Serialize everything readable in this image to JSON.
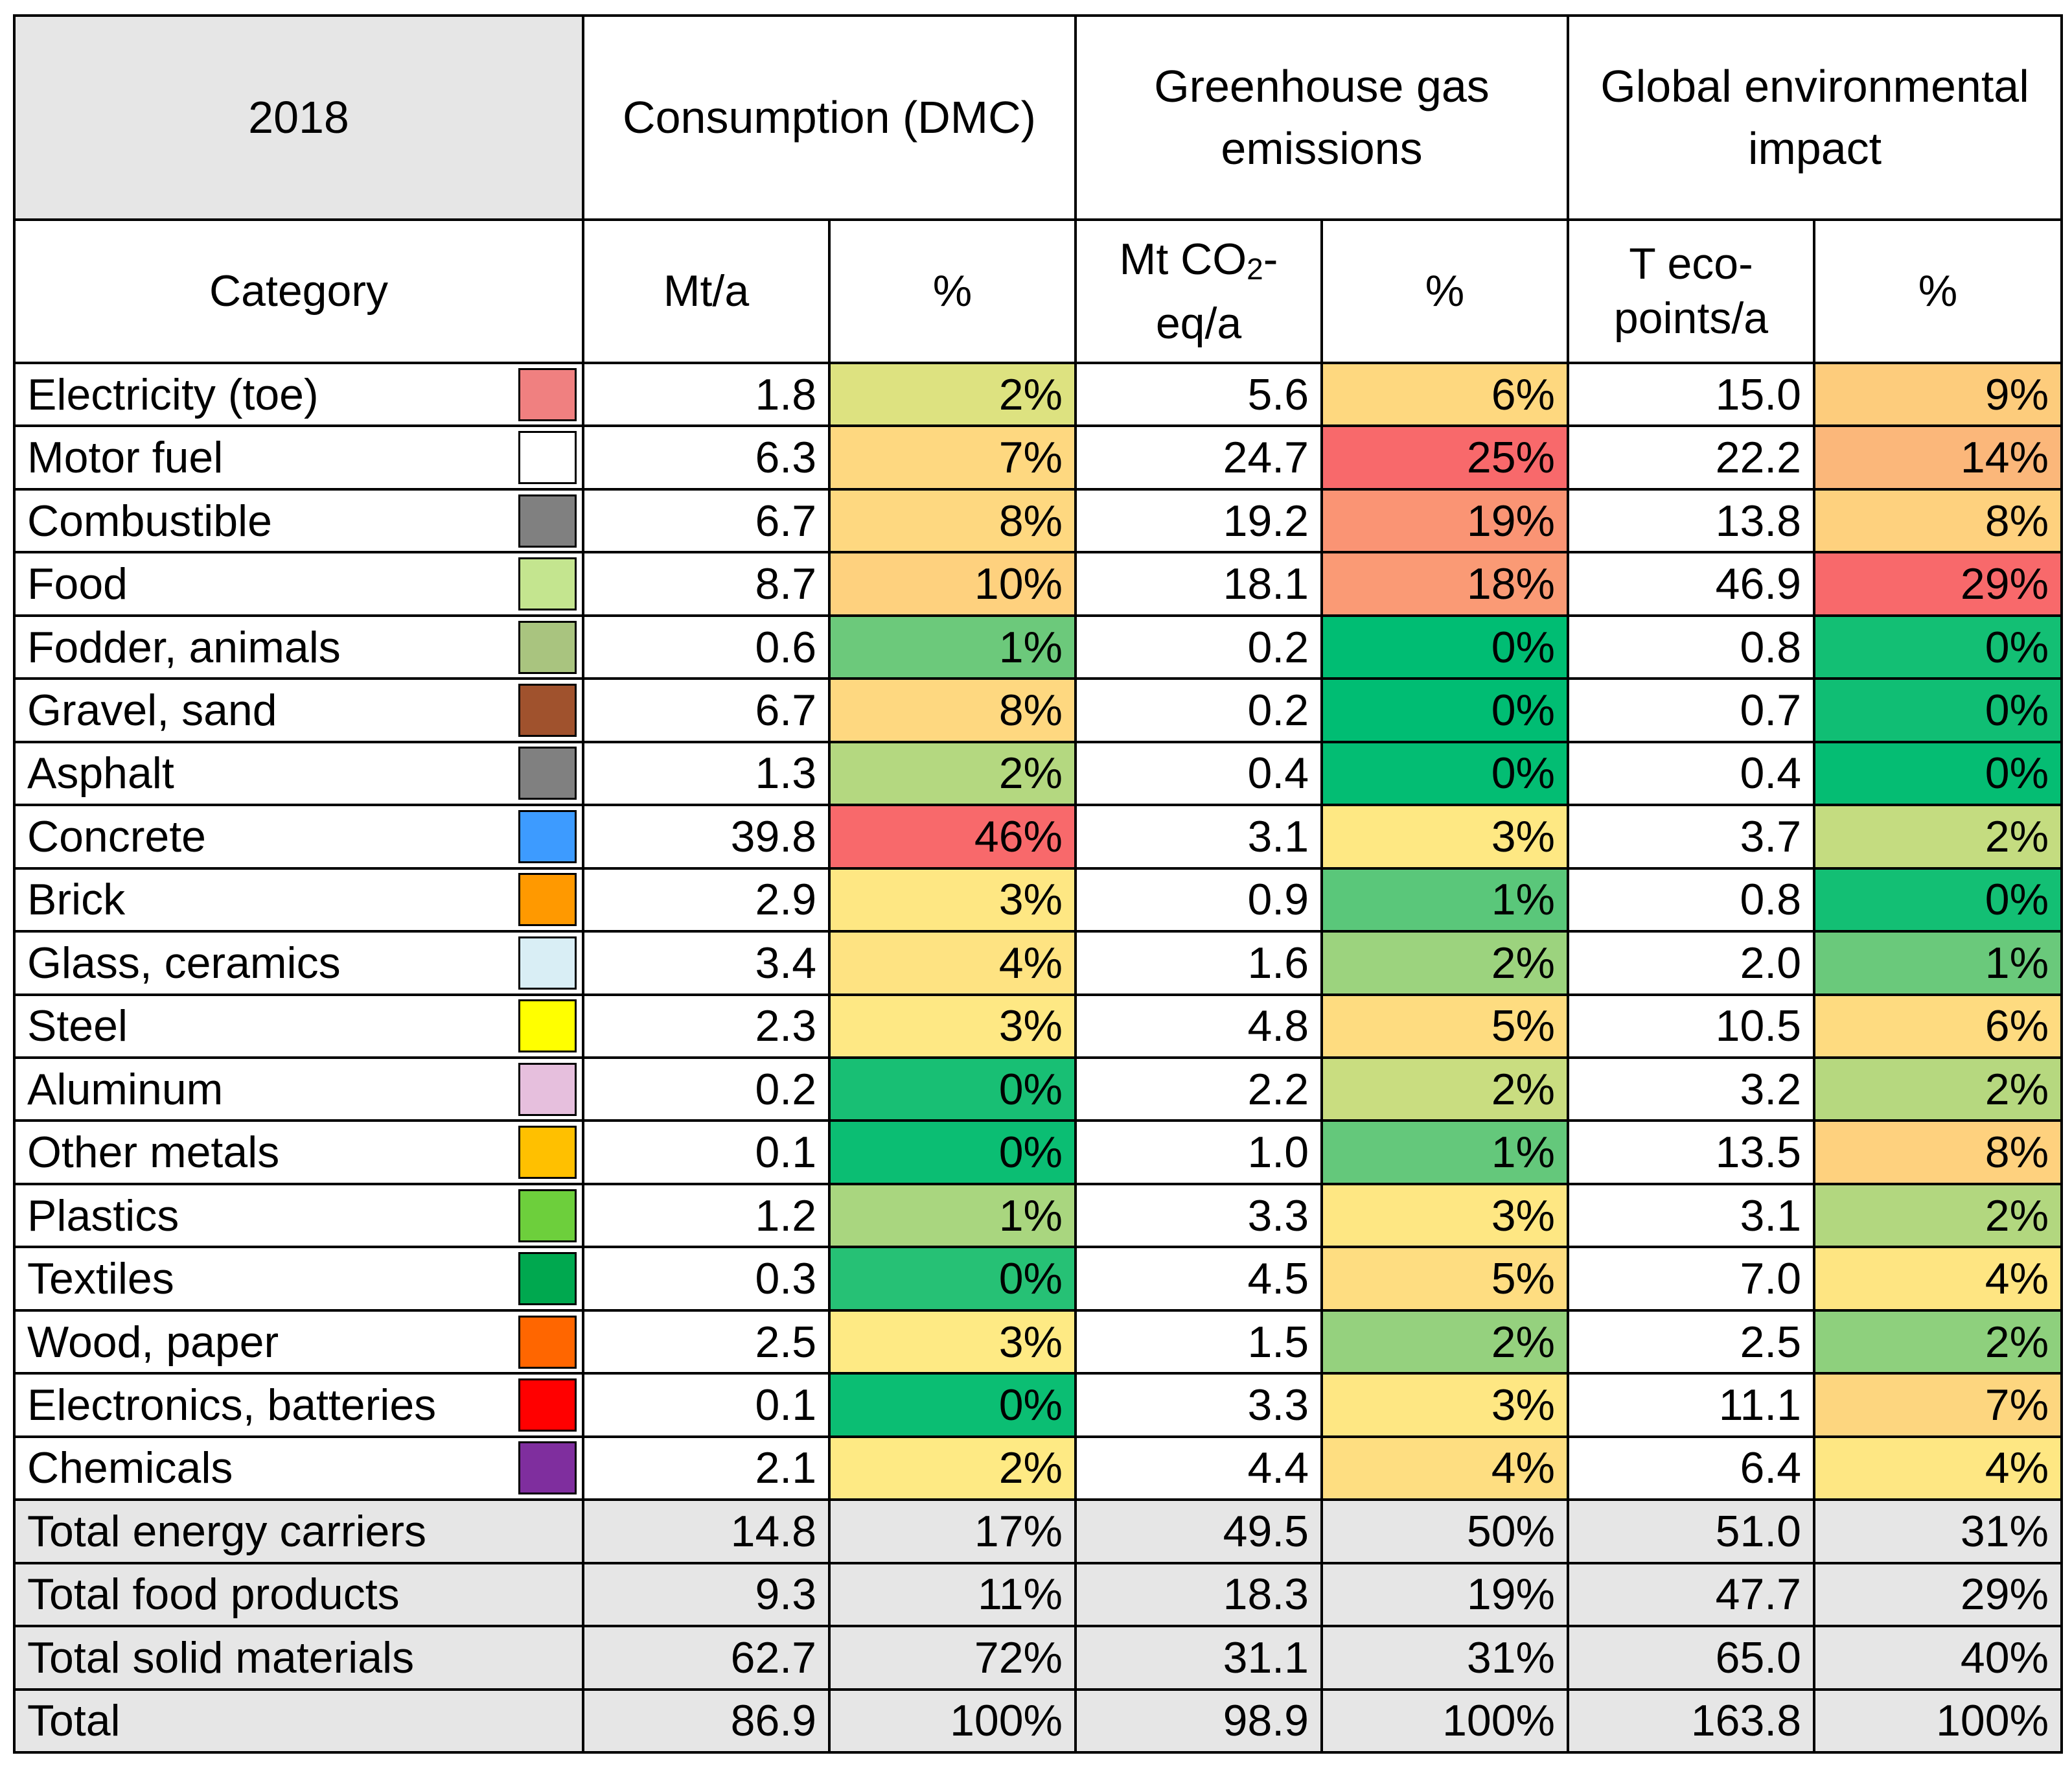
{
  "header": {
    "year": "2018",
    "group1": "Consumption (DMC)",
    "group2": "Greenhouse gas emissions",
    "group3": "Global environmental impact"
  },
  "subheader": {
    "category": "Category",
    "mta": "Mt/a",
    "pct1": "%",
    "mtco2_pre": "Mt CO",
    "mtco2_sub": "2",
    "mtco2_post": "-eq/a",
    "pct2": "%",
    "teco": "T eco-points/a",
    "pct3": "%"
  },
  "rows": [
    {
      "name": "Electricity (toe)",
      "swatch": "#f08080",
      "dmc": "1.8",
      "dmc_pct": "2%",
      "dmc_color": "#dde280",
      "ghg": "5.6",
      "ghg_pct": "6%",
      "ghg_color": "#fed87f",
      "gei": "15.0",
      "gei_pct": "9%",
      "gei_color": "#fdcc7c"
    },
    {
      "name": "Motor fuel",
      "swatch": "#ffffff",
      "dmc": "6.3",
      "dmc_pct": "7%",
      "dmc_color": "#fed880",
      "ghg": "24.7",
      "ghg_pct": "25%",
      "ghg_color": "#f8696b",
      "gei": "22.2",
      "gei_pct": "14%",
      "gei_color": "#fbb77a"
    },
    {
      "name": "Combustible",
      "swatch": "#808080",
      "dmc": "6.7",
      "dmc_pct": "8%",
      "dmc_color": "#fed880",
      "ghg": "19.2",
      "ghg_pct": "19%",
      "ghg_color": "#fa9474",
      "gei": "13.8",
      "gei_pct": "8%",
      "gei_color": "#fed17e"
    },
    {
      "name": "Food",
      "swatch": "#c4e58f",
      "dmc": "8.7",
      "dmc_pct": "10%",
      "dmc_color": "#fed17e",
      "ghg": "18.1",
      "ghg_pct": "18%",
      "ghg_color": "#fa9a75",
      "gei": "46.9",
      "gei_pct": "29%",
      "gei_color": "#f8696b"
    },
    {
      "name": "Fodder, animals",
      "swatch": "#a9c47f",
      "dmc": "0.6",
      "dmc_pct": "1%",
      "dmc_color": "#6cc97b",
      "ghg": "0.2",
      "ghg_pct": "0%",
      "ghg_color": "#00bd73",
      "gei": "0.8",
      "gei_pct": "0%",
      "gei_color": "#13bf74"
    },
    {
      "name": "Gravel, sand",
      "swatch": "#a0522d",
      "dmc": "6.7",
      "dmc_pct": "8%",
      "dmc_color": "#fed880",
      "ghg": "0.2",
      "ghg_pct": "0%",
      "ghg_color": "#00bd73",
      "gei": "0.7",
      "gei_pct": "0%",
      "gei_color": "#10be74"
    },
    {
      "name": "Asphalt",
      "swatch": "#808080",
      "dmc": "1.3",
      "dmc_pct": "2%",
      "dmc_color": "#b4d880",
      "ghg": "0.4",
      "ghg_pct": "0%",
      "ghg_color": "#03bd73",
      "gei": "0.4",
      "gei_pct": "0%",
      "gei_color": "#05bd73"
    },
    {
      "name": "Concrete",
      "swatch": "#3d9bff",
      "dmc": "39.8",
      "dmc_pct": "46%",
      "dmc_color": "#f8696b",
      "ghg": "3.1",
      "ghg_pct": "3%",
      "ghg_color": "#fee883",
      "gei": "3.7",
      "gei_pct": "2%",
      "gei_color": "#c4dc80"
    },
    {
      "name": "Brick",
      "swatch": "#ff9900",
      "dmc": "2.9",
      "dmc_pct": "3%",
      "dmc_color": "#fee783",
      "ghg": "0.9",
      "ghg_pct": "1%",
      "ghg_color": "#5ac77a",
      "gei": "0.8",
      "gei_pct": "0%",
      "gei_color": "#13bf74"
    },
    {
      "name": "Glass, ceramics",
      "swatch": "#d9eef5",
      "dmc": "3.4",
      "dmc_pct": "4%",
      "dmc_color": "#fee382",
      "ghg": "1.6",
      "ghg_pct": "2%",
      "ghg_color": "#9cd37e",
      "gei": "2.0",
      "gei_pct": "1%",
      "gei_color": "#6ac97b"
    },
    {
      "name": "Steel",
      "swatch": "#ffff00",
      "dmc": "2.3",
      "dmc_pct": "3%",
      "dmc_color": "#fee884",
      "ghg": "4.8",
      "ghg_pct": "5%",
      "ghg_color": "#fedc80",
      "gei": "10.5",
      "gei_pct": "6%",
      "gei_color": "#fedb80"
    },
    {
      "name": "Aluminum",
      "swatch": "#e6bfdd",
      "dmc": "0.2",
      "dmc_pct": "0%",
      "dmc_color": "#18bf74",
      "ghg": "2.2",
      "ghg_pct": "2%",
      "ghg_color": "#c9dd80",
      "gei": "3.2",
      "gei_pct": "2%",
      "gei_color": "#b6d87f"
    },
    {
      "name": "Other metals",
      "swatch": "#ffc000",
      "dmc": "0.1",
      "dmc_pct": "0%",
      "dmc_color": "#0bbe73",
      "ghg": "1.0",
      "ghg_pct": "1%",
      "ghg_color": "#64c87b",
      "gei": "13.5",
      "gei_pct": "8%",
      "gei_color": "#fed17e"
    },
    {
      "name": "Plastics",
      "swatch": "#6dcf3c",
      "dmc": "1.2",
      "dmc_pct": "1%",
      "dmc_color": "#a9d67f",
      "ghg": "3.3",
      "ghg_pct": "3%",
      "ghg_color": "#fee783",
      "gei": "3.1",
      "gei_pct": "2%",
      "gei_color": "#b2d77f"
    },
    {
      "name": "Textiles",
      "swatch": "#00a84f",
      "dmc": "0.3",
      "dmc_pct": "0%",
      "dmc_color": "#26c175",
      "ghg": "4.5",
      "ghg_pct": "5%",
      "ghg_color": "#fedd81",
      "gei": "7.0",
      "gei_pct": "4%",
      "gei_color": "#fee582"
    },
    {
      "name": "Wood, paper",
      "swatch": "#ff6600",
      "dmc": "2.5",
      "dmc_pct": "3%",
      "dmc_color": "#feea84",
      "ghg": "1.5",
      "ghg_pct": "2%",
      "ghg_color": "#95d17e",
      "gei": "2.5",
      "gei_pct": "2%",
      "gei_color": "#8ed07d"
    },
    {
      "name": "Electronics, batteries",
      "swatch": "#ff0000",
      "dmc": "0.1",
      "dmc_pct": "0%",
      "dmc_color": "#0bbe73",
      "ghg": "3.3",
      "ghg_pct": "3%",
      "ghg_color": "#fee783",
      "gei": "11.1",
      "gei_pct": "7%",
      "gei_color": "#fdd67f"
    },
    {
      "name": "Chemicals",
      "swatch": "#7f2e9e",
      "dmc": "2.1",
      "dmc_pct": "2%",
      "dmc_color": "#feea84",
      "ghg": "4.4",
      "ghg_pct": "4%",
      "ghg_color": "#fede81",
      "gei": "6.4",
      "gei_pct": "4%",
      "gei_color": "#fee783"
    }
  ],
  "totals": [
    {
      "name": "Total energy carriers",
      "dmc": "14.8",
      "dmc_pct": "17%",
      "ghg": "49.5",
      "ghg_pct": "50%",
      "gei": "51.0",
      "gei_pct": "31%"
    },
    {
      "name": "Total food products",
      "dmc": "9.3",
      "dmc_pct": "11%",
      "ghg": "18.3",
      "ghg_pct": "19%",
      "gei": "47.7",
      "gei_pct": "29%"
    },
    {
      "name": "Total solid materials",
      "dmc": "62.7",
      "dmc_pct": "72%",
      "ghg": "31.1",
      "ghg_pct": "31%",
      "gei": "65.0",
      "gei_pct": "40%"
    },
    {
      "name": "Total",
      "dmc": "86.9",
      "dmc_pct": "100%",
      "ghg": "98.9",
      "ghg_pct": "100%",
      "gei": "163.8",
      "gei_pct": "100%"
    }
  ]
}
